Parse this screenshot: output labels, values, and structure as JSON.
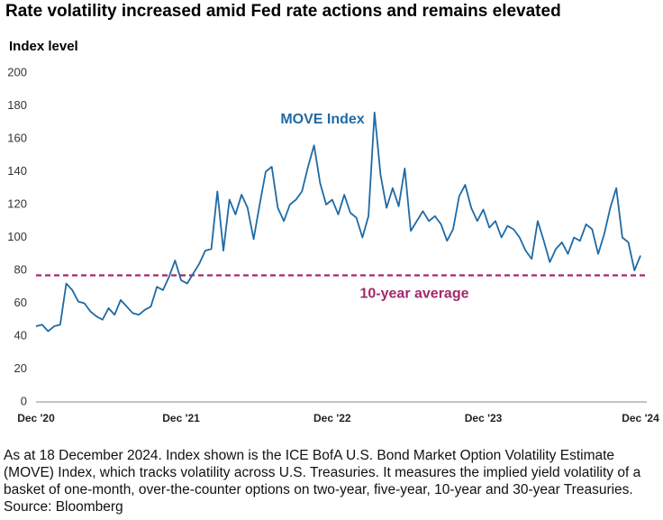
{
  "chart_data": {
    "type": "line",
    "title": "Rate volatility increased amid Fed rate actions and remains elevated",
    "ylabel": "Index level",
    "footnote": "As at 18 December 2024. Index shown is the ICE BofA U.S. Bond Market Option Volatility Estimate (MOVE) Index, which tracks volatility across U.S. Treasuries. It measures the implied yield volatility of a basket of one-month, over-the-counter options on two-year, five-year, 10-year and 30-year Treasuries. Source: Bloomberg",
    "categories": [
      "Dec '20",
      null,
      null,
      null,
      null,
      null,
      null,
      null,
      null,
      null,
      null,
      null,
      null,
      null,
      null,
      null,
      null,
      null,
      null,
      null,
      null,
      null,
      null,
      null,
      "Dec '21",
      null,
      null,
      null,
      null,
      null,
      null,
      null,
      null,
      null,
      null,
      null,
      null,
      null,
      null,
      null,
      null,
      null,
      null,
      null,
      null,
      null,
      null,
      null,
      null,
      "Dec '22",
      null,
      null,
      null,
      null,
      null,
      null,
      null,
      null,
      null,
      null,
      null,
      null,
      null,
      null,
      null,
      null,
      null,
      null,
      null,
      null,
      null,
      null,
      null,
      null,
      "Dec '23",
      null,
      null,
      null,
      null,
      null,
      null,
      null,
      null,
      null,
      null,
      null,
      null,
      null,
      null,
      null,
      null,
      null,
      null,
      null,
      null,
      null,
      null,
      null,
      null,
      null,
      "Dec '24"
    ],
    "series": [
      {
        "name": "MOVE Index",
        "color": "#1f6aa5",
        "values": [
          46,
          47,
          43,
          46,
          47,
          72,
          68,
          61,
          60,
          55,
          52,
          50,
          57,
          53,
          62,
          58,
          54,
          53,
          56,
          58,
          70,
          68,
          76,
          86,
          74,
          72,
          78,
          84,
          92,
          93,
          128,
          92,
          123,
          114,
          126,
          118,
          99,
          120,
          140,
          143,
          118,
          110,
          120,
          123,
          128,
          143,
          156,
          133,
          120,
          123,
          114,
          126,
          115,
          112,
          100,
          113,
          176,
          138,
          118,
          130,
          119,
          142,
          104,
          110,
          116,
          110,
          113,
          108,
          98,
          105,
          125,
          132,
          118,
          110,
          117,
          106,
          110,
          100,
          107,
          105,
          100,
          92,
          87,
          110,
          98,
          85,
          93,
          97,
          90,
          100,
          98,
          108,
          105,
          90,
          102,
          118,
          130,
          100,
          97,
          80,
          89
        ]
      }
    ],
    "reference_line": {
      "label": "10-year average",
      "value": 77,
      "color": "#a3286e"
    },
    "ylim": [
      0,
      200
    ],
    "yticks": [
      0,
      20,
      40,
      60,
      80,
      100,
      120,
      140,
      160,
      180,
      200
    ],
    "grid": false
  }
}
